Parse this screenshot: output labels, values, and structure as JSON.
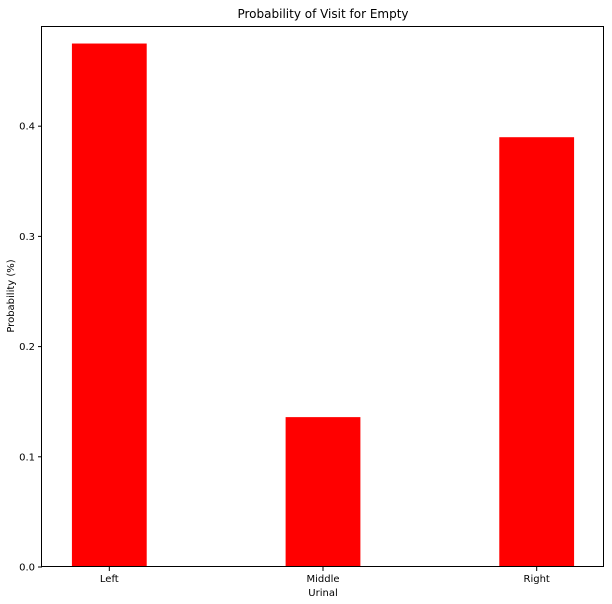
{
  "chart_data": {
    "type": "bar",
    "title": "Probability of Visit for Empty",
    "xlabel": "Urinal",
    "ylabel": "Probability (%)",
    "categories": [
      "Left",
      "Middle",
      "Right"
    ],
    "values": [
      0.475,
      0.136,
      0.39
    ],
    "ylim": [
      0,
      0.49
    ],
    "yticks": [
      0.0,
      0.1,
      0.2,
      0.3,
      0.4
    ],
    "ytick_labels": [
      "0.0",
      "0.1",
      "0.2",
      "0.3",
      "0.4"
    ],
    "bar_color": "#ff0000",
    "grid": false,
    "legend": "none"
  }
}
